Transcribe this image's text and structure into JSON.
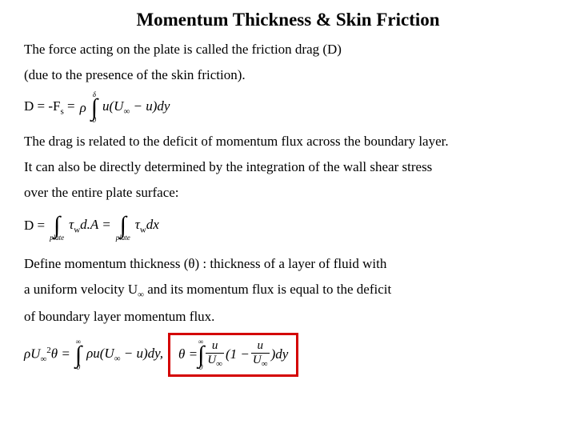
{
  "title": "Momentum Thickness & Skin Friction",
  "para1_l1": "The force acting on the plate is called the friction drag (D)",
  "para1_l2": "(due to the presence of the skin friction).",
  "eq1": {
    "lhs": "D = -F",
    "lhs_sub": "s",
    "eq": " = ",
    "rho": "ρ",
    "int_upper": "δ",
    "int_lower": "0",
    "body": "u(U",
    "body_sub": "∞",
    "body2": " − u)dy"
  },
  "para2_l1": "The drag is related to the deficit of momentum flux across the boundary layer.",
  "para2_l2": "It can also be directly determined by the integration of the wall shear stress",
  "para2_l3": "over the entire plate surface:",
  "eq2": {
    "lhs": "D = ",
    "int1_lower": "plate",
    "body1a": "τ",
    "body1a_sub": "w",
    "body1b": "d.A = ",
    "int2_lower": "plate",
    "body2a": "τ",
    "body2a_sub": "w",
    "body2b": "dx"
  },
  "para3_l1": "Define momentum thickness (θ) :  thickness of a layer of fluid with",
  "para3_l2_a": "a uniform velocity U",
  "para3_l2_sub": "∞",
  "para3_l2_b": " and its momentum flux is equal to the deficit",
  "para3_l3": "of boundary layer momentum flux.",
  "eq3": {
    "left_a": "ρU",
    "left_sub": "∞",
    "left_sup": "2",
    "left_b": "θ = ",
    "int1_upper": "∞",
    "int1_lower": "0",
    "body1a": "ρu(U",
    "body1a_sub": "∞",
    "body1b": " − u)dy,  ",
    "theta": "θ = ",
    "int2_upper": "∞",
    "int2_lower": "0",
    "frac1_num": "u",
    "frac1_den_a": "U",
    "frac1_den_sub": "∞",
    "mid": "(1 − ",
    "frac2_num": "u",
    "frac2_den_a": "U",
    "frac2_den_sub": "∞",
    "tail": ")dy"
  },
  "colors": {
    "redbox_border": "#d40000",
    "text": "#000000",
    "background": "#ffffff"
  }
}
